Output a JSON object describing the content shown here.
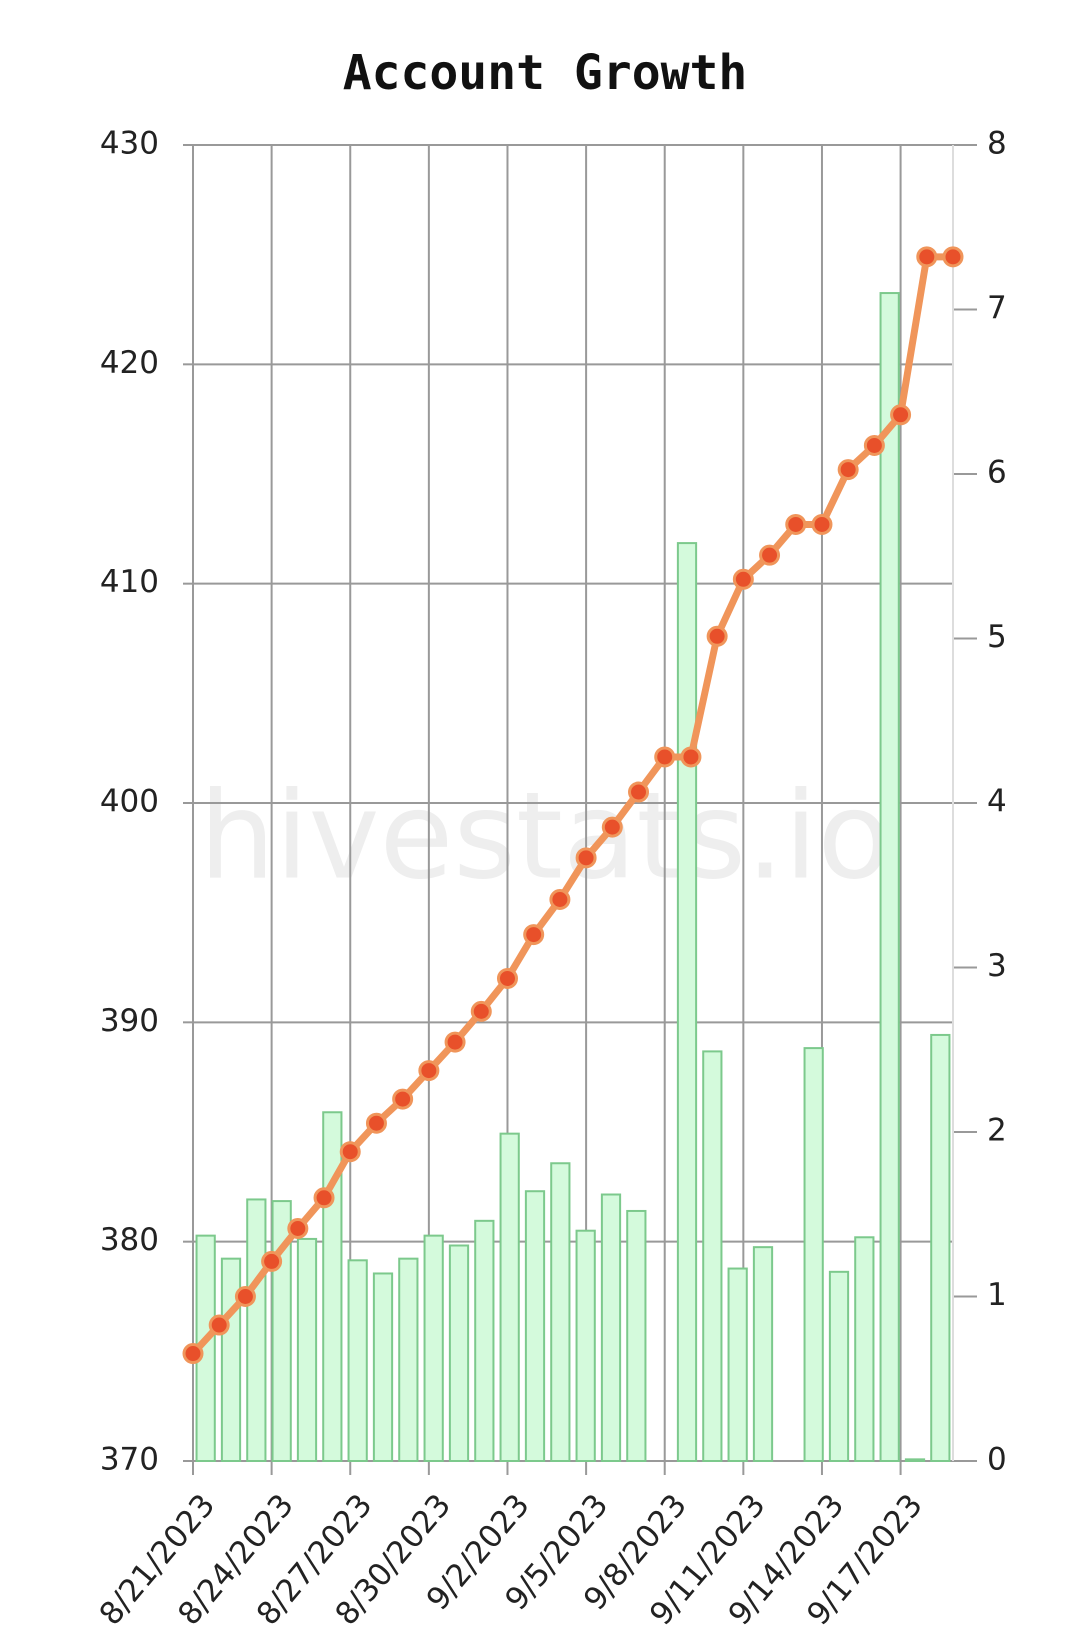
{
  "chart_data": {
    "type": "bar-line",
    "title": "Account Growth",
    "watermark": "hivestats.io",
    "categories": [
      "8/21/2023",
      null,
      null,
      "8/24/2023",
      null,
      null,
      "8/27/2023",
      null,
      null,
      "8/30/2023",
      null,
      null,
      "9/2/2023",
      null,
      null,
      "9/5/2023",
      null,
      null,
      "9/8/2023",
      null,
      null,
      "9/11/2023",
      null,
      null,
      "9/14/2023",
      null,
      null,
      "9/17/2023",
      null,
      null
    ],
    "series": [
      {
        "type": "line",
        "color": "#f0955a",
        "marker_color": "#e8502a",
        "values": [
          374.9,
          376.2,
          377.5,
          379.1,
          380.6,
          382.0,
          384.1,
          385.4,
          386.5,
          387.8,
          389.1,
          390.5,
          392.0,
          394.0,
          395.6,
          397.5,
          398.9,
          400.5,
          402.1,
          402.1,
          407.6,
          410.2,
          411.3,
          412.7,
          412.7,
          415.2,
          416.3,
          417.7,
          424.9,
          424.9
        ]
      },
      {
        "type": "bar",
        "axis": "y2",
        "color": "#d4fadc",
        "edge_color": "#7cc98c",
        "values": [
          1.37,
          1.23,
          1.59,
          1.58,
          1.35,
          2.12,
          1.22,
          1.14,
          1.23,
          1.37,
          1.31,
          1.46,
          1.99,
          1.64,
          1.81,
          1.4,
          1.62,
          1.52,
          null,
          5.58,
          2.49,
          1.17,
          1.3,
          null,
          2.51,
          1.15,
          1.36,
          7.1,
          0.01,
          2.59
        ]
      }
    ],
    "ylim": [
      370,
      430
    ],
    "yticks": [
      370,
      380,
      390,
      400,
      410,
      420,
      430
    ],
    "y2lim": [
      0,
      8
    ],
    "y2ticks": [
      0,
      1,
      2,
      3,
      4,
      5,
      6,
      7,
      8
    ],
    "grid": true
  }
}
